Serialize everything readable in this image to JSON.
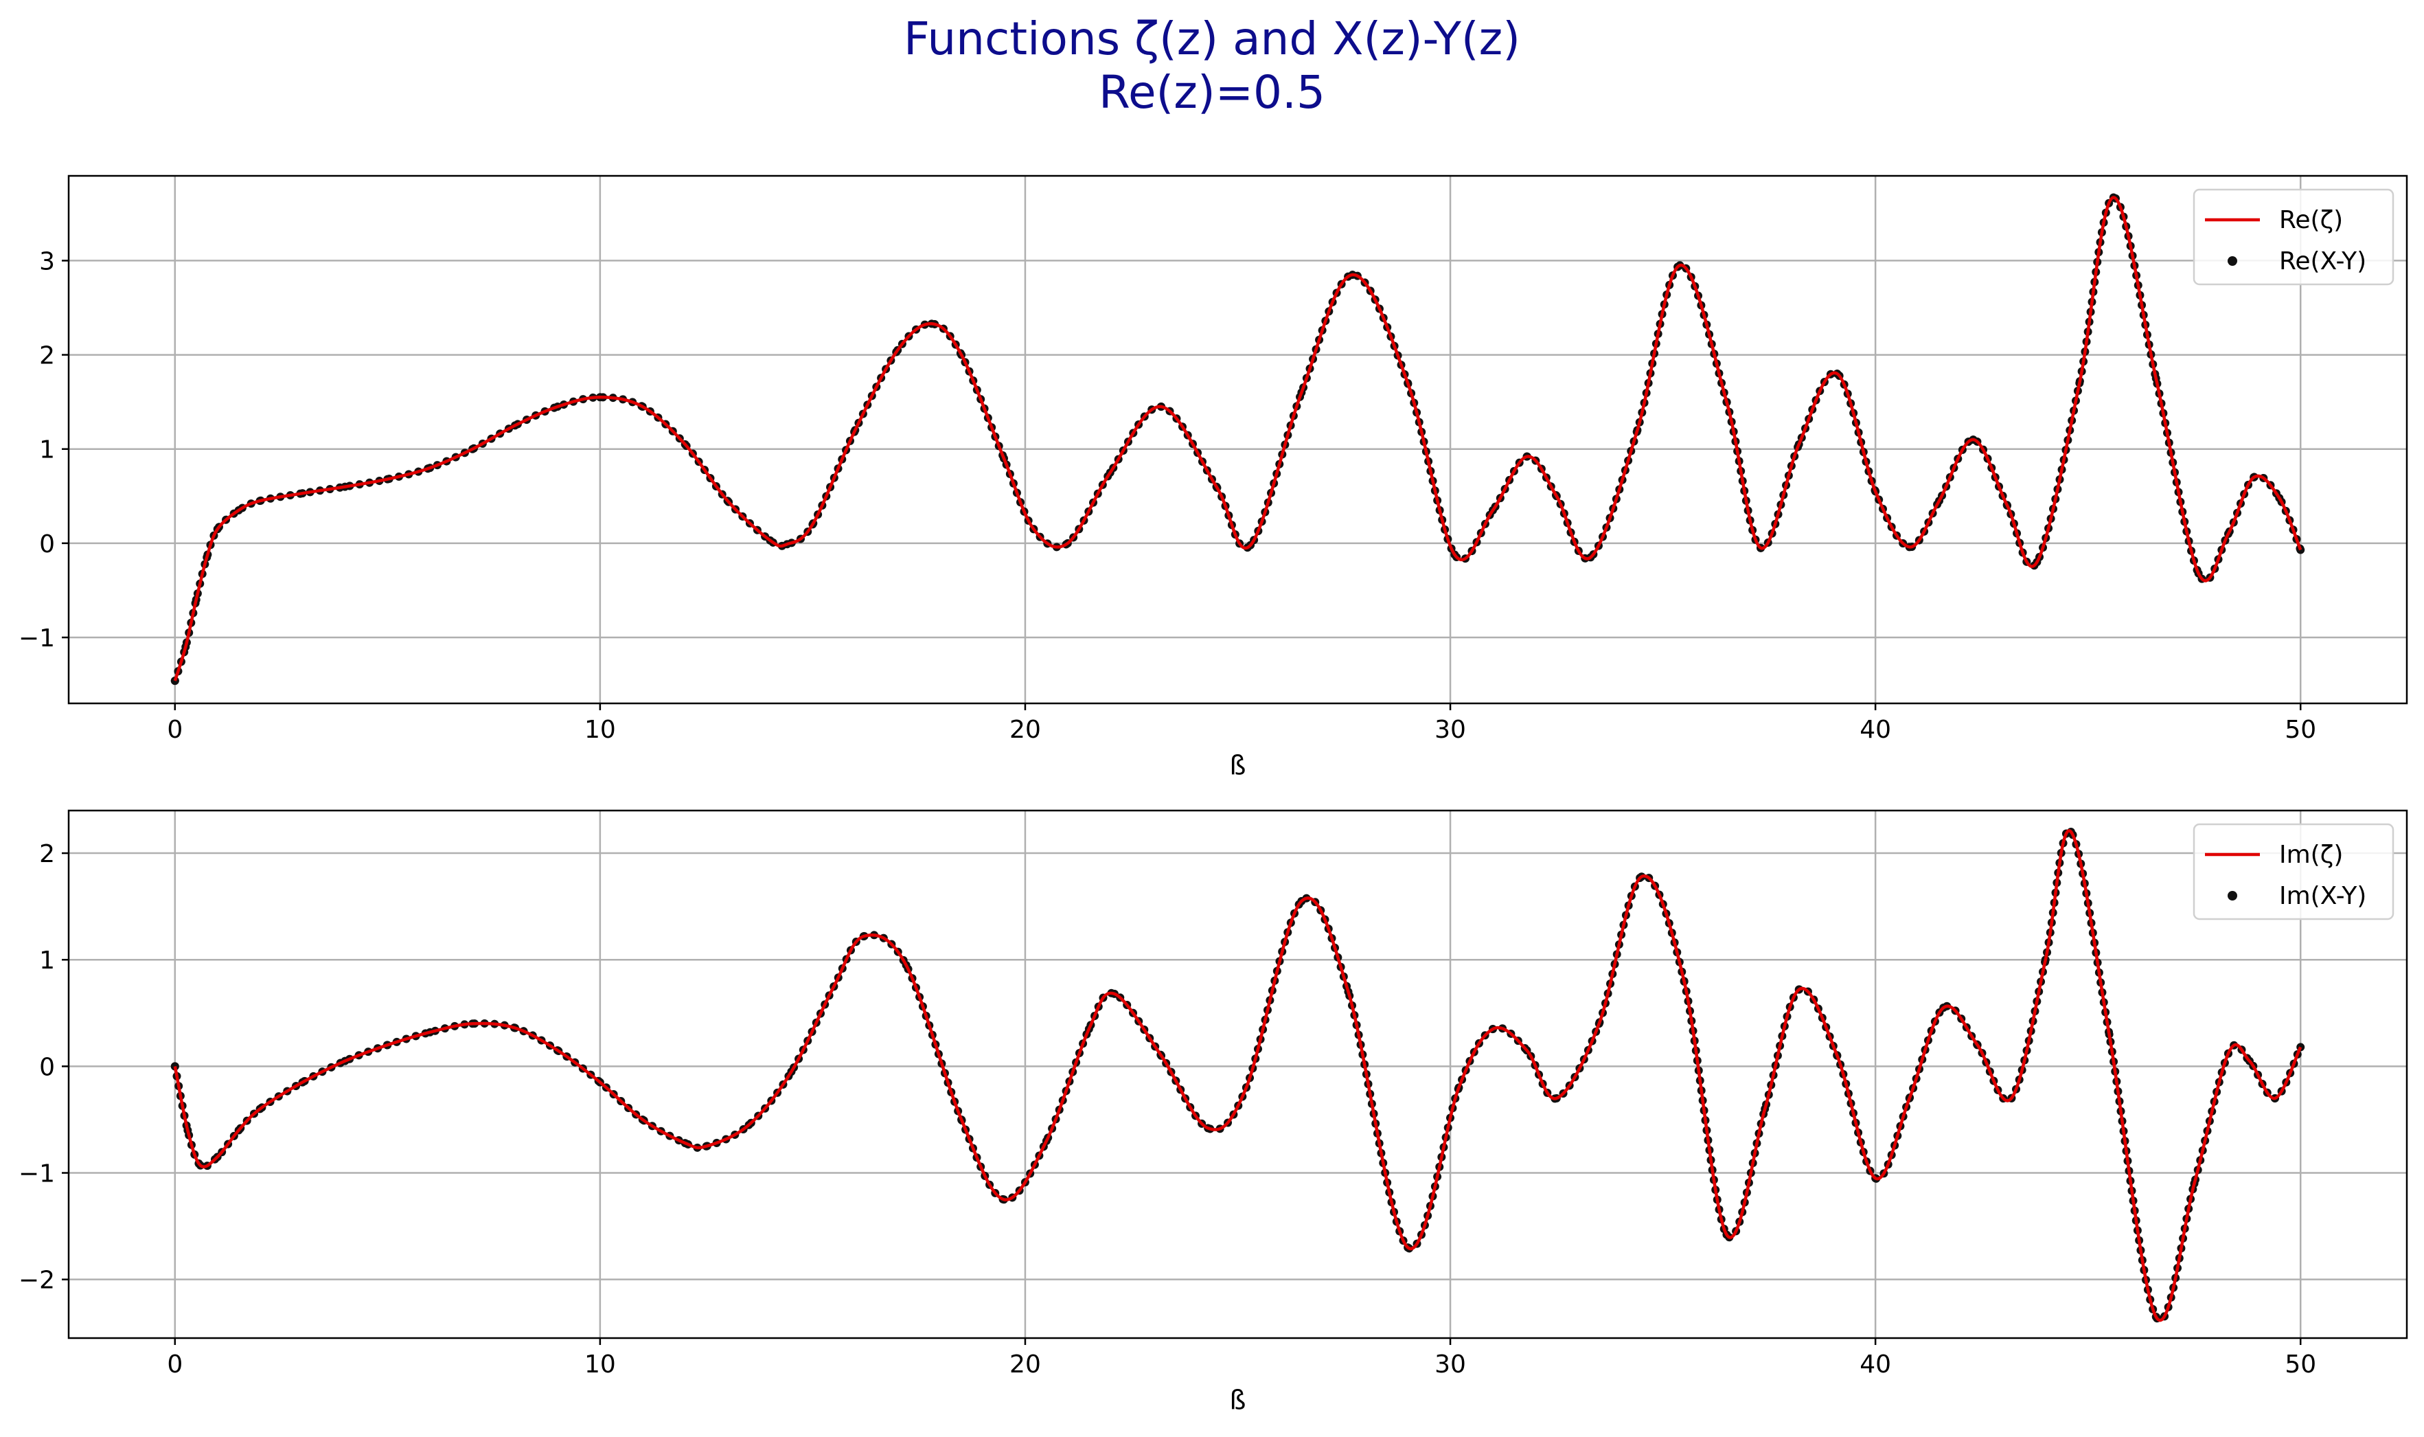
{
  "figure": {
    "title_line1": "Functions ζ(z) and X(z)-Y(z)",
    "title_line2": "Re(z)=0.5"
  },
  "colors": {
    "line": "#e00000",
    "dots": "#111111",
    "grid": "#b0b0b0",
    "title": "#0d0d8c"
  },
  "chart_data": [
    {
      "type": "line",
      "title": "",
      "xlabel": "ß",
      "ylabel": "",
      "xlim": [
        -2.5,
        52.5
      ],
      "ylim": [
        -1.7,
        3.9
      ],
      "xticks": [
        0,
        10,
        20,
        30,
        40,
        50
      ],
      "xtick_labels": [
        "0",
        "10",
        "20",
        "30",
        "40",
        "50"
      ],
      "yticks": [
        -1,
        0,
        1,
        2,
        3
      ],
      "ytick_labels": [
        "−1",
        "0",
        "1",
        "2",
        "3"
      ],
      "grid": true,
      "legend_position": "top-right",
      "x": [
        0,
        0.25,
        0.5,
        0.75,
        1,
        1.5,
        2,
        3,
        4,
        5,
        6,
        7,
        8,
        9,
        10,
        11,
        12,
        13,
        14,
        14.4,
        15,
        16,
        17,
        17.8,
        18.5,
        19.5,
        20.2,
        21,
        22,
        23.2,
        24.5,
        25.3,
        26.5,
        27.7,
        29,
        30.1,
        31,
        31.8,
        32.5,
        33.3,
        34.4,
        35.4,
        36.5,
        37.3,
        38.2,
        39.1,
        40,
        40.8,
        41.5,
        42.3,
        43.1,
        43.8,
        44.8,
        45.6,
        46.6,
        47.6,
        48.3,
        48.9,
        49.5,
        50
      ],
      "series": [
        {
          "name": "Re(ζ)",
          "style": "line",
          "values": [
            -1.46,
            -1.1,
            -0.6,
            -0.15,
            0.15,
            0.35,
            0.45,
            0.53,
            0.6,
            0.68,
            0.8,
            1.0,
            1.25,
            1.45,
            1.55,
            1.45,
            1.05,
            0.45,
            0.03,
            -0.01,
            0.2,
            1.2,
            2.05,
            2.33,
            2.0,
            0.9,
            0.15,
            0.0,
            0.75,
            1.45,
            0.6,
            -0.02,
            1.6,
            2.85,
            1.7,
            -0.12,
            0.35,
            0.92,
            0.5,
            -0.15,
            1.2,
            2.95,
            1.5,
            -0.05,
            1.05,
            1.8,
            0.55,
            -0.04,
            0.45,
            1.1,
            0.4,
            -0.2,
            1.7,
            3.67,
            1.75,
            -0.32,
            0.1,
            0.7,
            0.48,
            -0.07
          ]
        },
        {
          "name": "Re(X-Y)",
          "style": "dots",
          "values": [
            -1.46,
            -1.1,
            -0.6,
            -0.15,
            0.15,
            0.35,
            0.45,
            0.53,
            0.6,
            0.68,
            0.8,
            1.0,
            1.25,
            1.45,
            1.55,
            1.45,
            1.05,
            0.45,
            0.03,
            -0.01,
            0.2,
            1.2,
            2.05,
            2.33,
            2.0,
            0.9,
            0.15,
            0.0,
            0.75,
            1.45,
            0.6,
            -0.02,
            1.6,
            2.85,
            1.7,
            -0.12,
            0.35,
            0.92,
            0.5,
            -0.15,
            1.2,
            2.95,
            1.5,
            -0.05,
            1.05,
            1.8,
            0.55,
            -0.04,
            0.45,
            1.1,
            0.4,
            -0.2,
            1.7,
            3.67,
            1.75,
            -0.32,
            0.1,
            0.7,
            0.48,
            -0.07
          ]
        }
      ]
    },
    {
      "type": "line",
      "title": "",
      "xlabel": "ß",
      "ylabel": "",
      "xlim": [
        -2.5,
        52.5
      ],
      "ylim": [
        -2.55,
        2.4
      ],
      "xticks": [
        0,
        10,
        20,
        30,
        40,
        50
      ],
      "xtick_labels": [
        "0",
        "10",
        "20",
        "30",
        "40",
        "50"
      ],
      "yticks": [
        -2,
        -1,
        0,
        1,
        2
      ],
      "ytick_labels": [
        "−2",
        "−1",
        "0",
        "1",
        "2"
      ],
      "grid": true,
      "legend_position": "top-right",
      "x": [
        0,
        0.3,
        0.6,
        1,
        1.5,
        2,
        3,
        4,
        5,
        6,
        7,
        8,
        9,
        10,
        11,
        12,
        12.5,
        13.5,
        14.5,
        15.5,
        16.2,
        17.2,
        18.5,
        19.5,
        20.5,
        21.5,
        22.1,
        23.2,
        24.3,
        25.2,
        26.5,
        27.6,
        29,
        30.2,
        31,
        31.8,
        32.5,
        33.5,
        34.5,
        35.5,
        36.5,
        37.4,
        38.2,
        39.1,
        40,
        40.8,
        41.6,
        42.4,
        43.2,
        44,
        44.6,
        45.5,
        46.6,
        47.5,
        48.3,
        48.8,
        49.4,
        50
      ],
      "series": [
        {
          "name": "Im(ζ)",
          "style": "line",
          "values": [
            0.0,
            -0.6,
            -0.93,
            -0.85,
            -0.6,
            -0.4,
            -0.15,
            0.05,
            0.2,
            0.32,
            0.4,
            0.36,
            0.15,
            -0.15,
            -0.5,
            -0.72,
            -0.75,
            -0.55,
            -0.05,
            0.75,
            1.22,
            0.95,
            -0.5,
            -1.25,
            -0.7,
            0.35,
            0.68,
            0.1,
            -0.58,
            -0.2,
            1.55,
            0.7,
            -1.7,
            -0.2,
            0.35,
            0.15,
            -0.3,
            0.4,
            1.78,
            0.8,
            -1.58,
            -0.4,
            0.72,
            0.1,
            -1.05,
            -0.3,
            0.55,
            0.2,
            -0.3,
            1.0,
            2.2,
            0.3,
            -2.35,
            -1.1,
            0.12,
            0.05,
            -0.3,
            0.18
          ]
        },
        {
          "name": "Im(X-Y)",
          "style": "dots",
          "values": [
            0.0,
            -0.6,
            -0.93,
            -0.85,
            -0.6,
            -0.4,
            -0.15,
            0.05,
            0.2,
            0.32,
            0.4,
            0.36,
            0.15,
            -0.15,
            -0.5,
            -0.72,
            -0.75,
            -0.55,
            -0.05,
            0.75,
            1.22,
            0.95,
            -0.5,
            -1.25,
            -0.7,
            0.35,
            0.68,
            0.1,
            -0.58,
            -0.2,
            1.55,
            0.7,
            -1.7,
            -0.2,
            0.35,
            0.15,
            -0.3,
            0.4,
            1.78,
            0.8,
            -1.58,
            -0.4,
            0.72,
            0.1,
            -1.05,
            -0.3,
            0.55,
            0.2,
            -0.3,
            1.0,
            2.2,
            0.3,
            -2.35,
            -1.1,
            0.12,
            0.05,
            -0.3,
            0.18
          ]
        }
      ]
    }
  ]
}
